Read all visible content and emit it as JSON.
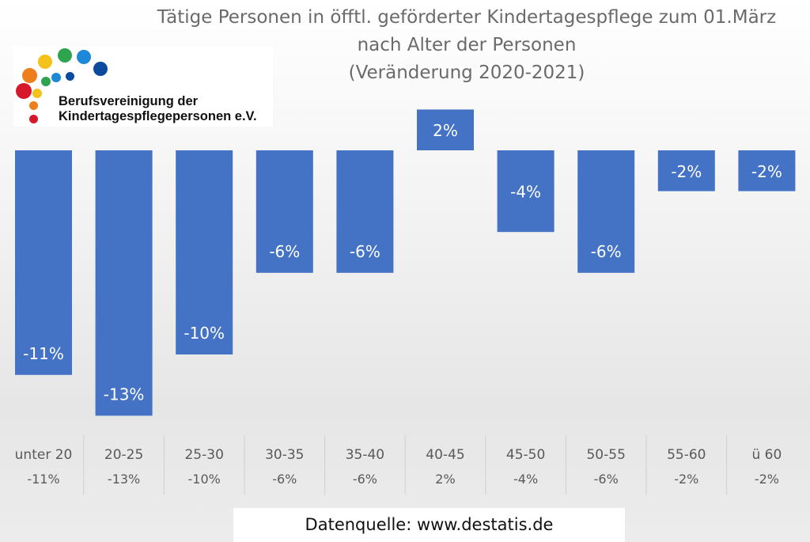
{
  "title": [
    "Tätige Personen in öfftl. geförderter Kindertagespflege zum 01.März",
    "nach Alter der Personen",
    "(Veränderung 2020-2021)"
  ],
  "logo": {
    "line1": "Berufsvereinigung der",
    "line2": "Kindertagespflegepersonen e.V.",
    "dot_colors": [
      "#d7182a",
      "#ee7d1c",
      "#f5c21b",
      "#2ea44f",
      "#1e88d8",
      "#0b4a9c"
    ]
  },
  "source": "Datenquelle: www.destatis.de",
  "chart_data": {
    "type": "bar",
    "title": "Tätige Personen in öfftl. geförderter Kindertagespflege zum 01.März nach Alter der Personen (Veränderung 2020-2021)",
    "categories": [
      "unter 20",
      "20-25",
      "25-30",
      "30-35",
      "35-40",
      "40-45",
      "45-50",
      "50-55",
      "55-60",
      "ü 60"
    ],
    "values": [
      -11,
      -13,
      -10,
      -6,
      -6,
      2,
      -4,
      -6,
      -2,
      -2
    ],
    "data_labels": [
      "-11%",
      "-13%",
      "-10%",
      "-6%",
      "-6%",
      "2%",
      "-4%",
      "-6%",
      "-2%",
      "-2%"
    ],
    "unit": "%",
    "bar_color": "#4472c4",
    "ylim": [
      -13,
      2
    ],
    "grid": false,
    "legend": "none"
  }
}
